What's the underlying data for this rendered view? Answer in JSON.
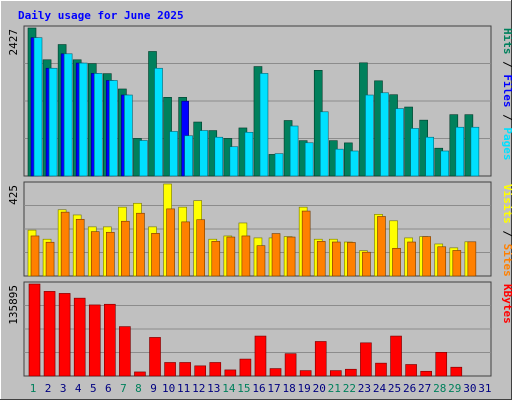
{
  "title": "Daily usage for June 2025",
  "colors": {
    "background": "#c0c0c0",
    "title": "#0000ff",
    "grid": "#8c8c8c",
    "hits": "#00805c",
    "files": "#0000ff",
    "pages": "#00e0ff",
    "visits": "#ffff00",
    "sites": "#ff8000",
    "kbytes": "#ff0000",
    "weekend_day": "#00805c",
    "weekday": "#000080"
  },
  "chart_data": [
    {
      "type": "bar",
      "panel": "hits-files-pages",
      "max_label": "2427",
      "legend": [
        "Pages",
        "Files",
        "Hits"
      ],
      "categories": [
        "1",
        "2",
        "3",
        "4",
        "5",
        "6",
        "7",
        "8",
        "9",
        "10",
        "11",
        "12",
        "13",
        "14",
        "15",
        "16",
        "17",
        "18",
        "19",
        "20",
        "21",
        "22",
        "23",
        "24",
        "25",
        "26",
        "27",
        "28",
        "29",
        "30",
        "31"
      ],
      "series": [
        {
          "name": "Hits",
          "values": [
            2427,
            1906,
            2156,
            1906,
            1843,
            1679,
            1427,
            616,
            2042,
            1290,
            1290,
            885,
            745,
            616,
            788,
            1795,
            354,
            910,
            580,
            1733,
            580,
            543,
            1856,
            1561,
            1333,
            1131,
            916,
            456,
            1006,
            1006,
            0
          ]
        },
        {
          "name": "Files",
          "values": [
            2268,
            1767,
            2004,
            1852,
            1682,
            1566,
            1328,
            0,
            0,
            0,
            1227,
            0,
            0,
            0,
            0,
            0,
            0,
            0,
            0,
            0,
            0,
            0,
            0,
            0,
            0,
            0,
            0,
            0,
            0,
            0,
            0
          ]
        },
        {
          "name": "Pages",
          "values": [
            2268,
            1767,
            2004,
            1852,
            1682,
            1566,
            1328,
            582,
            1767,
            730,
            660,
            745,
            636,
            480,
            717,
            1682,
            366,
            820,
            545,
            1053,
            440,
            410,
            1328,
            1365,
            1105,
            780,
            636,
            410,
            800,
            800,
            0
          ]
        }
      ]
    },
    {
      "type": "bar",
      "panel": "visits-sites",
      "max_label": "425",
      "legend": [
        "Sites",
        "Visits"
      ],
      "categories": [
        "1",
        "2",
        "3",
        "4",
        "5",
        "6",
        "7",
        "8",
        "9",
        "10",
        "11",
        "12",
        "13",
        "14",
        "15",
        "16",
        "17",
        "18",
        "19",
        "20",
        "21",
        "22",
        "23",
        "24",
        "25",
        "26",
        "27",
        "28",
        "29",
        "30",
        "31"
      ],
      "series": [
        {
          "name": "Visits",
          "values": [
            212,
            170,
            306,
            282,
            227,
            227,
            318,
            336,
            227,
            425,
            318,
            348,
            170,
            185,
            245,
            176,
            176,
            182,
            318,
            170,
            170,
            157,
            117,
            285,
            255,
            176,
            182,
            148,
            130,
            158,
            0
          ]
        },
        {
          "name": "Sites",
          "values": [
            185,
            156,
            295,
            262,
            205,
            202,
            253,
            290,
            197,
            310,
            250,
            260,
            160,
            180,
            185,
            140,
            196,
            180,
            300,
            160,
            157,
            155,
            110,
            275,
            128,
            157,
            182,
            135,
            118,
            158,
            0
          ]
        }
      ]
    },
    {
      "type": "bar",
      "panel": "kbytes",
      "max_label": "135895",
      "legend": [
        "KBytes"
      ],
      "categories": [
        "1",
        "2",
        "3",
        "4",
        "5",
        "6",
        "7",
        "8",
        "9",
        "10",
        "11",
        "12",
        "13",
        "14",
        "15",
        "16",
        "17",
        "18",
        "19",
        "20",
        "21",
        "22",
        "23",
        "24",
        "25",
        "26",
        "27",
        "28",
        "29",
        "30",
        "31"
      ],
      "series": [
        {
          "name": "KBytes",
          "values": [
            135895,
            125000,
            122000,
            115000,
            105000,
            106000,
            73000,
            6000,
            57000,
            20000,
            20000,
            15000,
            20000,
            9000,
            25000,
            59000,
            11000,
            33000,
            8000,
            51000,
            8000,
            10000,
            49000,
            19000,
            59000,
            17000,
            7000,
            35000,
            13000,
            0,
            0
          ]
        }
      ]
    }
  ],
  "weekend_days": [
    "1",
    "7",
    "8",
    "14",
    "15",
    "21",
    "22",
    "28",
    "29"
  ]
}
